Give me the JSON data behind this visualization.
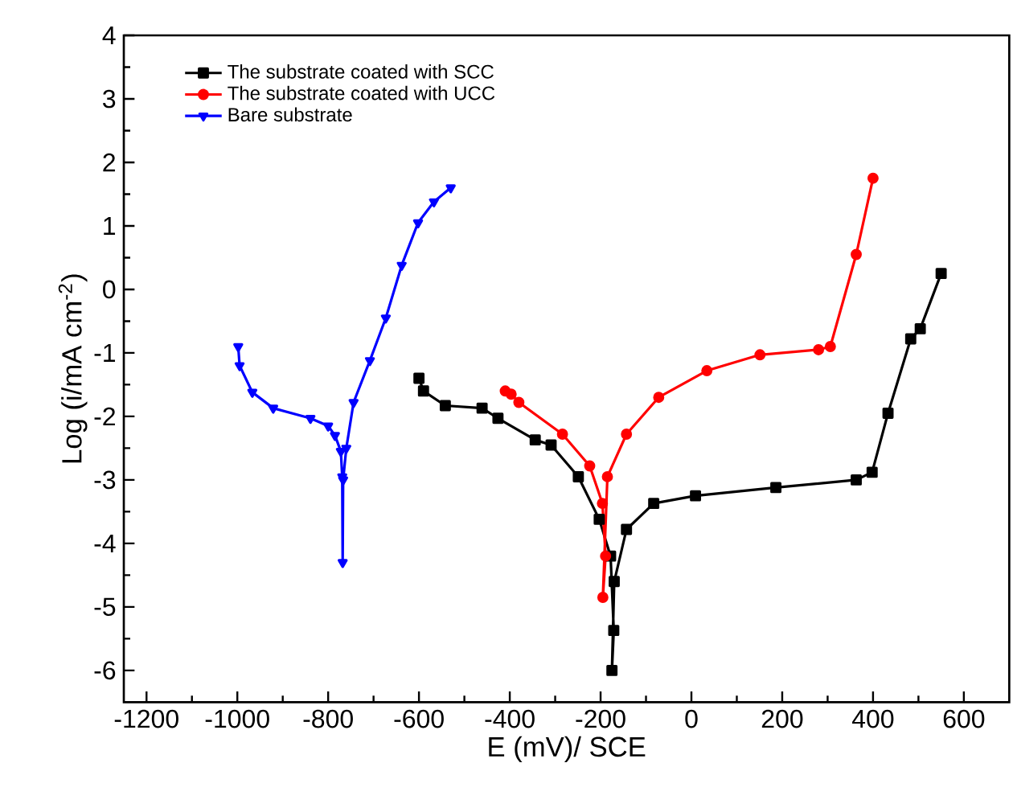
{
  "chart_data": {
    "type": "line",
    "xlabel": "E (mV)/ SCE",
    "ylabel": "Log (i/mA cm$^{-2}$)",
    "xlim": [
      -1250,
      700
    ],
    "ylim": [
      -6.5,
      4
    ],
    "xticks": [
      -1200,
      -1000,
      -800,
      -600,
      -400,
      -200,
      0,
      200,
      400,
      600
    ],
    "yticks": [
      -6,
      -5,
      -4,
      -3,
      -2,
      -1,
      0,
      1,
      2,
      3,
      4
    ],
    "legend": "top left",
    "grid": false,
    "series": [
      {
        "name": "The substrate coated with SCC",
        "color": "#000000",
        "marker": "square",
        "x": [
          -600,
          -590,
          -542,
          -461,
          -426,
          -344,
          -309,
          -249,
          -203,
          -178,
          -171,
          -175,
          -170,
          -143,
          -83,
          9,
          186,
          363,
          398,
          433,
          483,
          504,
          550
        ],
        "values": [
          -1.4,
          -1.6,
          -1.83,
          -1.87,
          -2.03,
          -2.37,
          -2.45,
          -2.95,
          -3.62,
          -4.2,
          -5.37,
          -6.0,
          -4.6,
          -3.78,
          -3.37,
          -3.25,
          -3.12,
          -3.0,
          -2.88,
          -1.95,
          -0.78,
          -0.62,
          0.25
        ]
      },
      {
        "name": "The substrate coated with UCC",
        "color": "#ff0000",
        "marker": "circle",
        "x": [
          -410,
          -397,
          -380,
          -284,
          -224,
          -196,
          -189,
          -195,
          -185,
          -143,
          -72,
          34,
          151,
          280,
          306,
          363,
          400
        ],
        "values": [
          -1.6,
          -1.65,
          -1.78,
          -2.28,
          -2.78,
          -3.37,
          -4.2,
          -4.85,
          -2.95,
          -2.28,
          -1.7,
          -1.28,
          -1.03,
          -0.95,
          -0.9,
          0.55,
          1.75
        ]
      },
      {
        "name": "Bare substrate",
        "color": "#0000ff",
        "marker": "triangle",
        "x": [
          -998,
          -995,
          -967,
          -921,
          -839,
          -800,
          -785,
          -772,
          -769,
          -768,
          -767,
          -760,
          -744,
          -708,
          -673,
          -638,
          -602,
          -567,
          -530
        ],
        "values": [
          -0.9,
          -1.2,
          -1.62,
          -1.87,
          -2.03,
          -2.15,
          -2.3,
          -2.55,
          -2.95,
          -4.3,
          -3.0,
          -2.5,
          -1.78,
          -1.12,
          -0.45,
          0.38,
          1.05,
          1.38,
          1.6
        ]
      }
    ]
  }
}
